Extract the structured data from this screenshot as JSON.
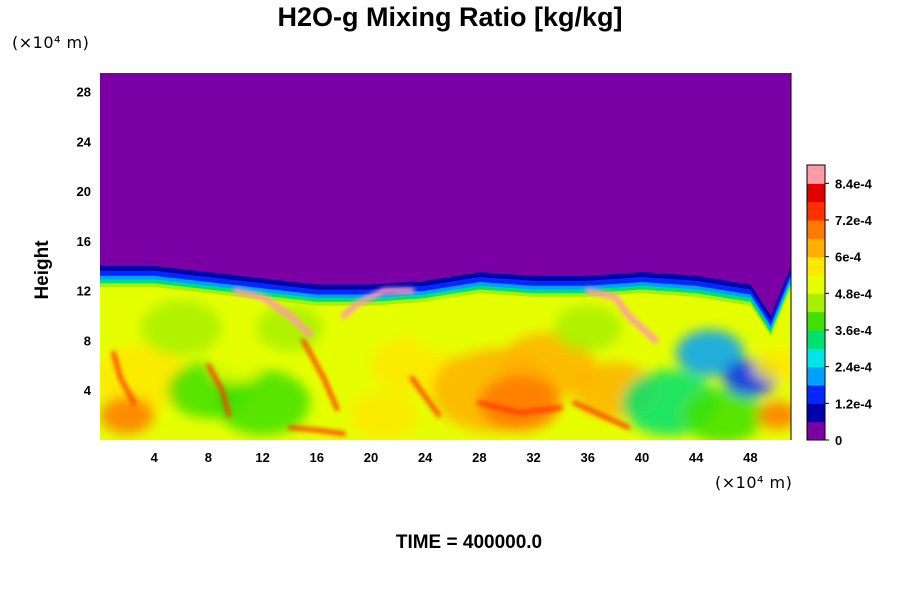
{
  "title": "H2O-g Mixing Ratio [kg/kg]",
  "time_label": "TIME = 400000.0",
  "chart_data": {
    "type": "heatmap",
    "title": "H2O-g Mixing Ratio [kg/kg]",
    "xlabel": "",
    "ylabel": "Height",
    "x_unit": "(×10⁴ m)",
    "y_unit": "(×10⁴ m)",
    "xlim": [
      0,
      51
    ],
    "ylim": [
      0,
      29.5
    ],
    "x_ticks": [
      4,
      8,
      12,
      16,
      20,
      24,
      28,
      32,
      36,
      40,
      44,
      48
    ],
    "y_ticks": [
      4,
      8,
      12,
      16,
      20,
      24,
      28
    ],
    "grid": false,
    "colorbar": {
      "range": [
        0,
        0.0009
      ],
      "labels": [
        "8.4e-4",
        "7.2e-4",
        "6e-4",
        "4.8e-4",
        "3.6e-4",
        "2.4e-4",
        "1.2e-4",
        "0"
      ],
      "label_values": [
        0.00084,
        0.00072,
        0.0006,
        0.00048,
        0.00036,
        0.00024,
        0.00012,
        0
      ],
      "colors": [
        "#7a00a6",
        "#0000aa",
        "#0028ff",
        "#00a0ff",
        "#00e6e6",
        "#00e070",
        "#40e000",
        "#a8f000",
        "#e6ff00",
        "#ffe800",
        "#ffb000",
        "#ff7800",
        "#ff3000",
        "#e00000",
        "#ff9aa8"
      ]
    },
    "field_description_values": {
      "upper_layer_top_height": [
        14,
        14,
        13.5,
        13,
        12.5,
        12.5,
        12.8,
        13.5,
        13.2,
        13.2,
        13.5,
        13.2,
        12.5,
        10,
        14
      ],
      "upper_layer_x": [
        0,
        4,
        8,
        12,
        16,
        20,
        24,
        28,
        32,
        36,
        40,
        44,
        48,
        49.5,
        51
      ]
    }
  }
}
